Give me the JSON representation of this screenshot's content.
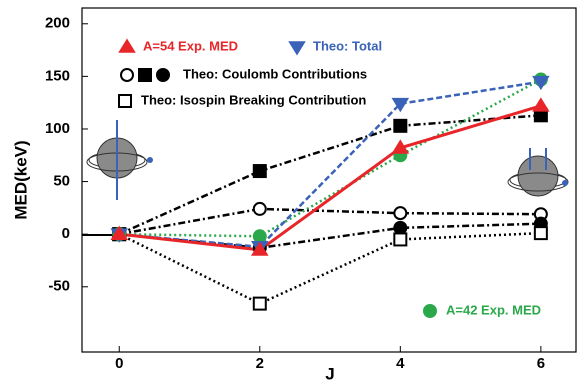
{
  "chart_data": {
    "type": "line",
    "x_label": "J",
    "y_label": "MED(keV)",
    "x": [
      0,
      2,
      4,
      6
    ],
    "xlim": [
      -0.53,
      6.5
    ],
    "xticks": [
      0,
      2,
      4,
      6
    ],
    "ylim": [
      -112,
      215
    ],
    "yticks": [
      -50,
      0,
      50,
      100,
      150,
      200
    ],
    "series": [
      {
        "name": "Theo: Coulomb Contributions",
        "color": "#000000",
        "marker": "circle-open",
        "dash": "dashdot",
        "values": [
          0,
          24,
          20,
          19
        ]
      },
      {
        "color": "#000000",
        "marker": "square-filled",
        "dash": "dashdot",
        "values": [
          0,
          60,
          103,
          113
        ]
      },
      {
        "color": "#000000",
        "marker": "circle-filled",
        "dash": "dashdot",
        "values": [
          0,
          -13,
          6,
          10
        ]
      },
      {
        "name": "Theo: Isospin Breaking Contribution",
        "color": "#000000",
        "marker": "square-open",
        "dash": "dotted",
        "values": [
          0,
          -66,
          -5,
          1
        ]
      },
      {
        "name": "A=42 Exp. MED",
        "color": "#2aa84a",
        "marker": "circle-filled",
        "dash": "dotted",
        "values": [
          0,
          -2,
          75,
          147
        ]
      },
      {
        "name": "Theo: Total",
        "color": "#3a62b8",
        "marker": "triangle-down",
        "dash": "dashed",
        "values": [
          0,
          -12,
          124,
          145
        ]
      },
      {
        "name": "A=54  Exp. MED",
        "color": "#e8262a",
        "marker": "triangle-up",
        "dash": "solid",
        "values": [
          0,
          -15,
          82,
          122
        ]
      }
    ]
  }
}
